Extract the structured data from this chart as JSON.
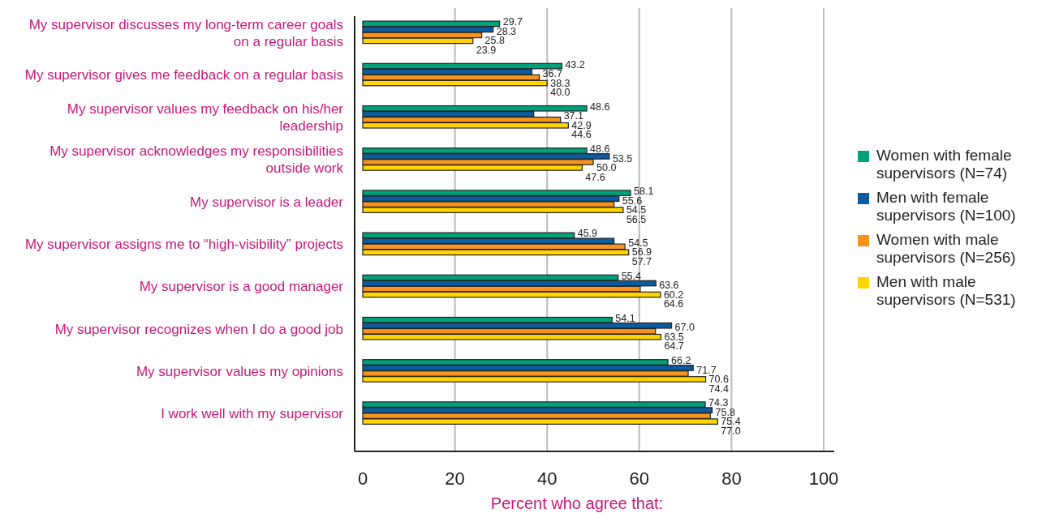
{
  "chart_data": {
    "type": "bar",
    "orientation": "horizontal",
    "xlabel": "Percent who agree that:",
    "categories": [
      "My supervisor discusses my long-term career goals on a regular basis",
      "My supervisor gives me feedback on a regular basis",
      "My supervisor values my feedback on his/her leadership",
      "My supervisor acknowledges my responsibilities outside work",
      "My supervisor is a leader",
      "My supervisor assigns me to “high-visibility” projects",
      "My supervisor is a good manager",
      "My supervisor recognizes when I do a good job",
      "My supervisor values my opinions",
      "I work well with my supervisor"
    ],
    "series": [
      {
        "name": "Women with female supervisors (N=74)",
        "color": "#00a07a",
        "values": [
          29.7,
          43.2,
          48.6,
          48.6,
          58.1,
          45.9,
          55.4,
          54.1,
          66.2,
          74.3
        ],
        "value_labels": [
          "29.7",
          "43.2",
          "48.6",
          "48.6",
          "58.1",
          "45.9",
          "55.4",
          "54.1",
          "66.2",
          "74.3"
        ]
      },
      {
        "name": "Men with female supervisors (N=100)",
        "color": "#0b5c9e",
        "values": [
          28.3,
          36.7,
          37.1,
          53.5,
          55.6,
          54.5,
          63.6,
          67.0,
          71.7,
          75.8
        ],
        "value_labels": [
          "28.3",
          "36.7",
          "37.1",
          "53.5",
          "55.6",
          "54.5",
          "63.6",
          "67.0",
          "71.7",
          "75.8"
        ]
      },
      {
        "name": "Women with male supervisors (N=256)",
        "color": "#f7941d",
        "values": [
          25.8,
          38.3,
          42.9,
          50.0,
          54.5,
          56.9,
          60.2,
          63.5,
          70.6,
          75.4
        ],
        "value_labels": [
          "25.8",
          "38.3",
          "42.9",
          "50.0",
          "54.5",
          "56.9",
          "60.2",
          "63.5",
          "70.6",
          "75.4"
        ]
      },
      {
        "name": "Men with male supervisors (N=531)",
        "color": "#ffd400",
        "values": [
          23.9,
          40.0,
          44.6,
          47.6,
          56.5,
          57.7,
          64.6,
          64.7,
          74.4,
          77.0
        ],
        "value_labels": [
          "23.9",
          "40.0",
          "44.6",
          "47.6",
          "56.5",
          "57.7",
          "64.6",
          "64.7",
          "74.4",
          "77.0"
        ]
      }
    ],
    "xlim": [
      0,
      100
    ],
    "xticks": [
      0,
      20,
      40,
      60,
      80,
      100
    ],
    "grid": "x",
    "legend": "right"
  }
}
